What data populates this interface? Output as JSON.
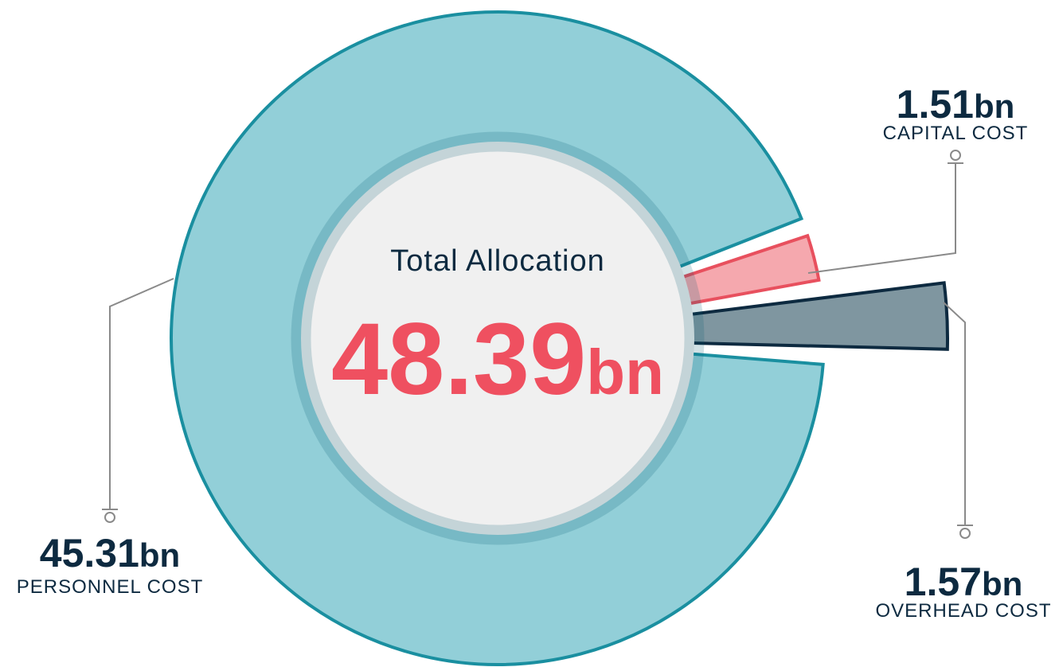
{
  "chart_data": {
    "type": "pie",
    "center_title": "Total Allocation",
    "center_value": "48.39bn",
    "categories": [
      "PERSONNEL COST",
      "CAPITAL COST",
      "OVERHEAD COST"
    ],
    "values": [
      45.31,
      1.51,
      1.57
    ],
    "value_labels": [
      "45.31bn",
      "1.51bn",
      "1.57bn"
    ],
    "colors": [
      "#92cfd8",
      "#f5a8ae",
      "#7f96a0"
    ],
    "stroke_colors": [
      "#1a8fa0",
      "#e8505e",
      "#0d2a40"
    ]
  }
}
